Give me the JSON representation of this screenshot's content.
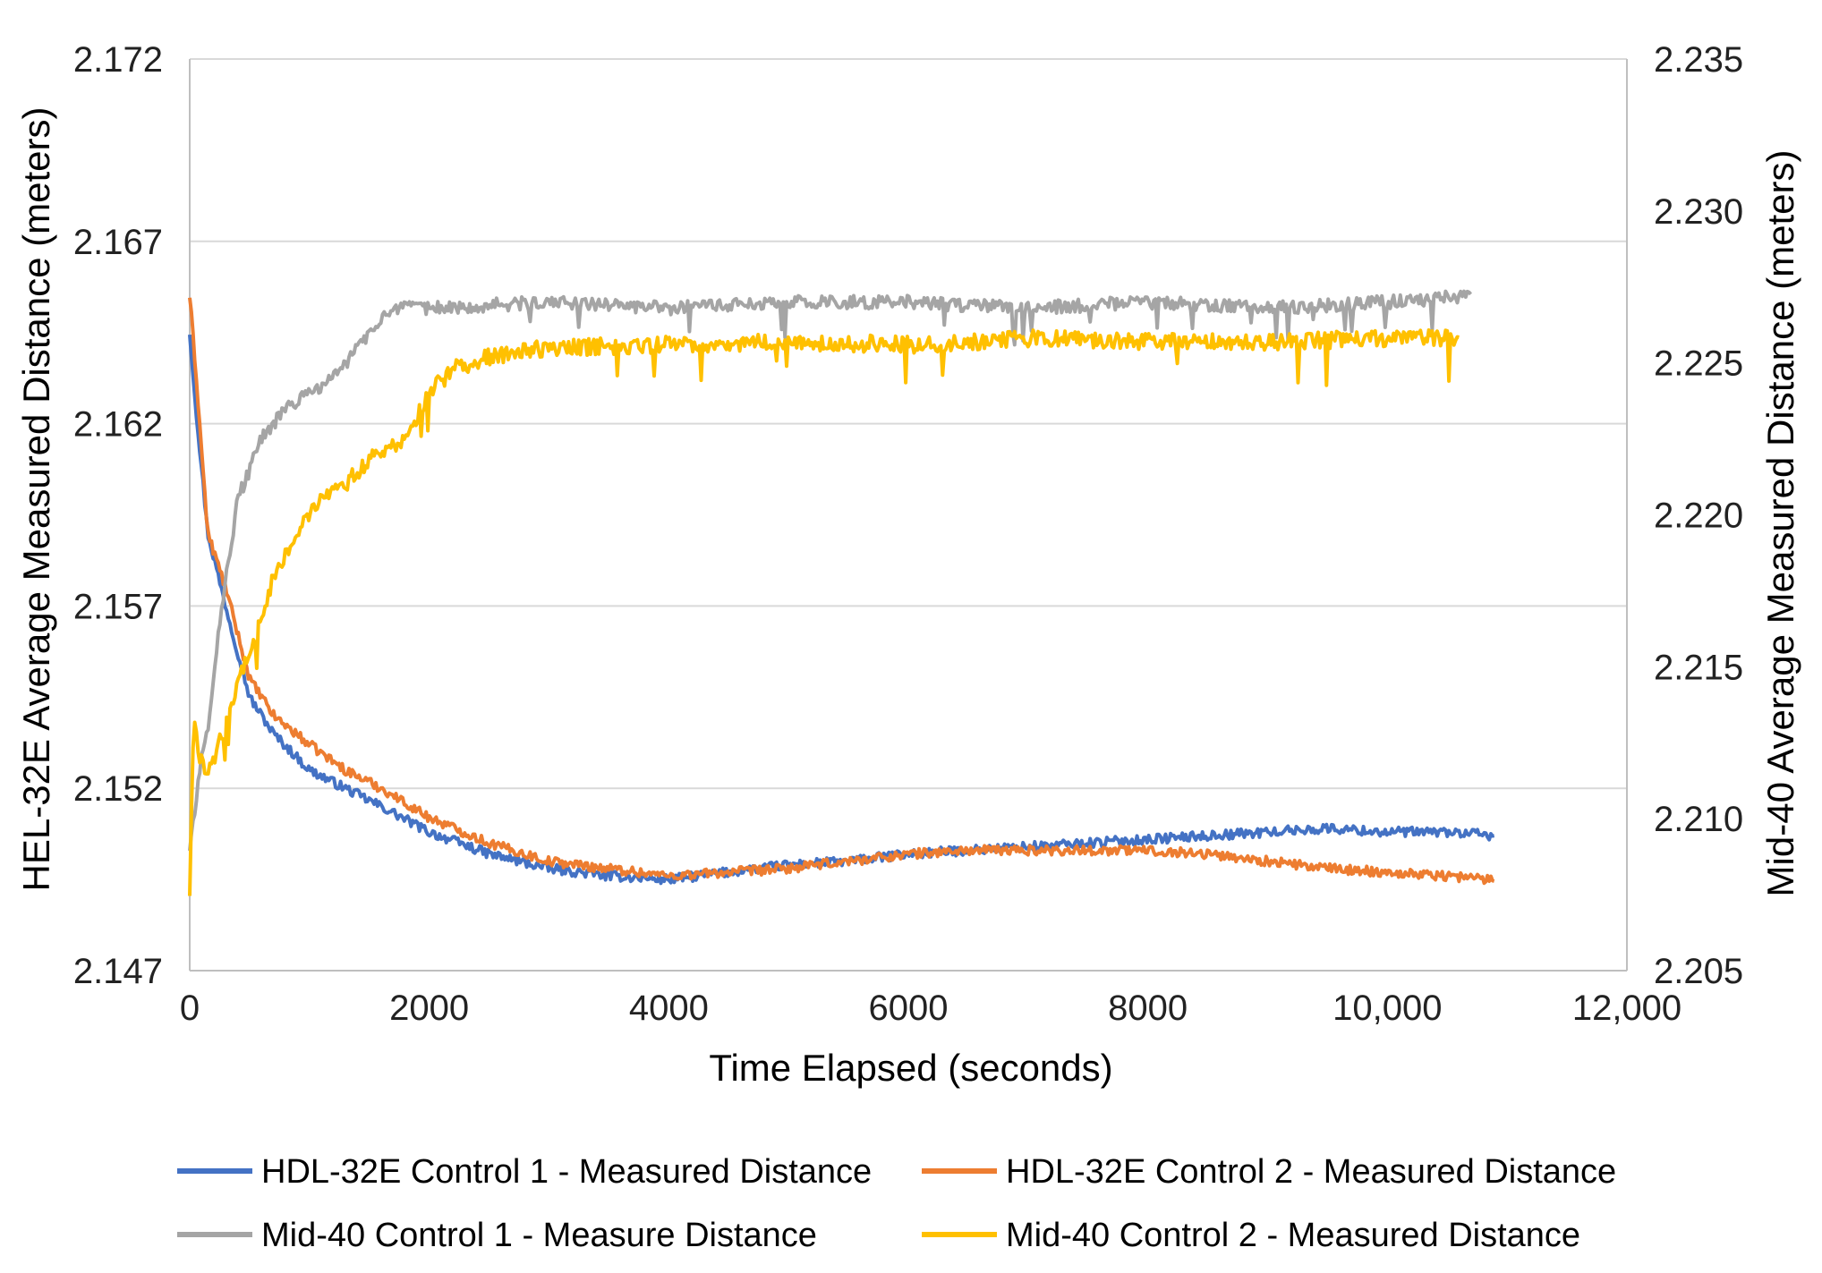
{
  "chart_data": {
    "type": "line",
    "title": "",
    "xlabel": "Time Elapsed (seconds)",
    "ylabel_left": "HEL-32E Average Measured Distance (meters)",
    "ylabel_right": "Mid-40 Average Measured Distance (meters)",
    "xlim": [
      0,
      12000
    ],
    "ylim_left": [
      2.147,
      2.172
    ],
    "ylim_right": [
      2.205,
      2.235
    ],
    "x_ticks": [
      0,
      2000,
      4000,
      6000,
      8000,
      10000,
      12000
    ],
    "x_tick_labels": [
      "0",
      "2000",
      "4000",
      "6000",
      "8000",
      "10,000",
      "12,000"
    ],
    "y_left_ticks": [
      2.147,
      2.152,
      2.157,
      2.162,
      2.167,
      2.172
    ],
    "y_left_tick_labels": [
      "2.147",
      "2.152",
      "2.157",
      "2.162",
      "2.167",
      "2.172"
    ],
    "y_right_ticks": [
      2.205,
      2.21,
      2.215,
      2.22,
      2.225,
      2.23,
      2.235
    ],
    "y_right_tick_labels": [
      "2.205",
      "2.210",
      "2.215",
      "2.220",
      "2.225",
      "2.230",
      "2.235"
    ],
    "grid": true,
    "legend_position": "bottom",
    "series": [
      {
        "name": "HDL-32E Control 1 - Measured Distance",
        "axis": "left",
        "color": "#4472C4",
        "x": [
          0,
          50,
          150,
          300,
          500,
          700,
          1000,
          1300,
          1600,
          2000,
          2500,
          3000,
          3500,
          4000,
          4500,
          5000,
          5500,
          6000,
          6500,
          7000,
          7500,
          8000,
          8500,
          9000,
          9500,
          10000,
          10500,
          10900
        ],
        "y": [
          2.1645,
          2.1625,
          2.159,
          2.157,
          2.1545,
          2.1535,
          2.1525,
          2.152,
          2.1515,
          2.1508,
          2.1502,
          2.1498,
          2.1496,
          2.1495,
          2.1497,
          2.1499,
          2.15,
          2.1502,
          2.1503,
          2.1504,
          2.1505,
          2.1506,
          2.1507,
          2.1508,
          2.1509,
          2.1508,
          2.1508,
          2.1507
        ]
      },
      {
        "name": "HDL-32E Control 2 - Measured Distance",
        "axis": "left",
        "color": "#ED7D31",
        "x": [
          0,
          50,
          150,
          300,
          500,
          700,
          1000,
          1300,
          1600,
          2000,
          2500,
          3000,
          3500,
          4000,
          4500,
          5000,
          5500,
          6000,
          6500,
          7000,
          7500,
          8000,
          8500,
          9000,
          9500,
          10000,
          10500,
          10900
        ],
        "y": [
          2.1655,
          2.1635,
          2.159,
          2.1575,
          2.155,
          2.154,
          2.1532,
          2.1525,
          2.152,
          2.1512,
          2.1505,
          2.15,
          2.1498,
          2.1496,
          2.1497,
          2.1498,
          2.15,
          2.1502,
          2.1503,
          2.1503,
          2.1503,
          2.1503,
          2.1502,
          2.15,
          2.1498,
          2.1497,
          2.1496,
          2.1495
        ]
      },
      {
        "name": "Mid-40 Control 1 - Measure Distance",
        "axis": "right",
        "color": "#A5A5A5",
        "x": [
          0,
          80,
          150,
          250,
          400,
          600,
          800,
          1000,
          1200,
          1400,
          1600,
          1800,
          2000,
          3000,
          4000,
          5000,
          6000,
          7000,
          8000,
          9000,
          10000,
          10700
        ],
        "y": [
          2.209,
          2.2115,
          2.213,
          2.2165,
          2.2205,
          2.2225,
          2.2235,
          2.224,
          2.2245,
          2.2255,
          2.2265,
          2.2268,
          2.2268,
          2.227,
          2.2268,
          2.227,
          2.227,
          2.2268,
          2.227,
          2.2268,
          2.227,
          2.2272
        ]
      },
      {
        "name": "Mid-40 Control 2 - Measured Distance",
        "axis": "right",
        "color": "#FFC000",
        "x": [
          0,
          30,
          80,
          150,
          250,
          400,
          550,
          700,
          900,
          1100,
          1300,
          1500,
          1800,
          2000,
          2200,
          2500,
          3000,
          4000,
          5000,
          6000,
          7000,
          8000,
          9000,
          10000,
          10600
        ],
        "y": [
          2.2075,
          2.2135,
          2.212,
          2.2115,
          2.2125,
          2.2145,
          2.216,
          2.218,
          2.2195,
          2.2205,
          2.221,
          2.2218,
          2.2225,
          2.224,
          2.2248,
          2.2252,
          2.2255,
          2.2256,
          2.2257,
          2.2256,
          2.2258,
          2.2257,
          2.2257,
          2.2258,
          2.2258
        ]
      }
    ]
  }
}
